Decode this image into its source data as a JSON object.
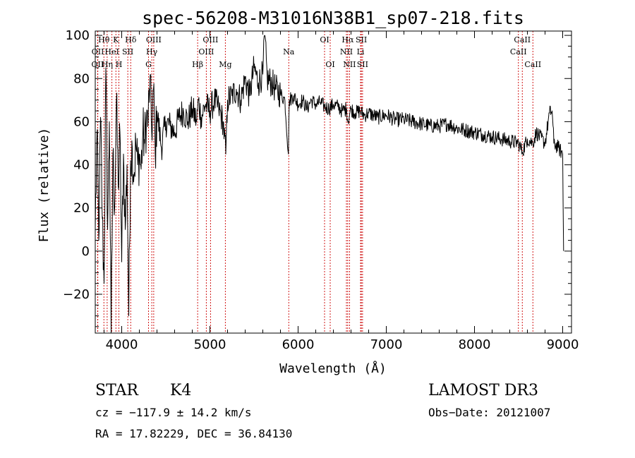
{
  "chart_data": {
    "type": "line",
    "title": "spec-56208-M31016N38B1_sp07-218.fits",
    "xlabel": "Wavelength (Å)",
    "ylabel": "Flux (relative)",
    "xlim": [
      3700,
      9100
    ],
    "ylim": [
      -38,
      102
    ],
    "xticks": [
      4000,
      5000,
      6000,
      7000,
      8000,
      9000
    ],
    "yticks": [
      -20,
      0,
      20,
      40,
      60,
      80,
      100
    ],
    "series": [
      {
        "name": "flux",
        "x": [
          3700,
          3720,
          3740,
          3760,
          3780,
          3800,
          3820,
          3840,
          3860,
          3880,
          3900,
          3920,
          3940,
          3960,
          3980,
          4000,
          4020,
          4040,
          4060,
          4080,
          4100,
          4120,
          4140,
          4160,
          4180,
          4200,
          4220,
          4240,
          4260,
          4280,
          4300,
          4320,
          4340,
          4360,
          4380,
          4400,
          4450,
          4500,
          4550,
          4600,
          4650,
          4700,
          4750,
          4800,
          4850,
          4870,
          4900,
          4950,
          5000,
          5050,
          5100,
          5150,
          5180,
          5200,
          5250,
          5300,
          5350,
          5400,
          5450,
          5500,
          5550,
          5600,
          5620,
          5650,
          5700,
          5750,
          5800,
          5850,
          5890,
          5900,
          5950,
          6000,
          6050,
          6100,
          6150,
          6200,
          6250,
          6300,
          6350,
          6400,
          6450,
          6500,
          6550,
          6563,
          6600,
          6650,
          6700,
          6750,
          6800,
          6900,
          7000,
          7100,
          7200,
          7300,
          7400,
          7500,
          7600,
          7700,
          7800,
          7900,
          8000,
          8100,
          8200,
          8300,
          8400,
          8500,
          8542,
          8600,
          8662,
          8700,
          8800,
          8850,
          8880,
          8900,
          8950,
          9000,
          9010
        ],
        "values": [
          10,
          55,
          5,
          62,
          15,
          -15,
          85,
          10,
          60,
          -38,
          45,
          20,
          70,
          30,
          55,
          -5,
          45,
          10,
          40,
          -30,
          42,
          48,
          35,
          50,
          40,
          45,
          38,
          55,
          50,
          62,
          60,
          80,
          55,
          75,
          45,
          65,
          48,
          60,
          58,
          55,
          62,
          65,
          60,
          66,
          60,
          70,
          62,
          68,
          65,
          70,
          66,
          60,
          45,
          70,
          72,
          75,
          70,
          80,
          72,
          85,
          78,
          82,
          100,
          80,
          78,
          75,
          73,
          70,
          45,
          70,
          72,
          68,
          70,
          66,
          70,
          68,
          69,
          67,
          66,
          68,
          67,
          65,
          66,
          60,
          66,
          64,
          65,
          63,
          64,
          62,
          63,
          61,
          61,
          60,
          59,
          58,
          58,
          59,
          57,
          56,
          55,
          54,
          53,
          52,
          51,
          50,
          46,
          52,
          50,
          55,
          50,
          64,
          65,
          50,
          48,
          45,
          0
        ]
      }
    ],
    "lines": [
      {
        "name": "OII",
        "wl": 3727,
        "row": 3
      },
      {
        "name": "OII",
        "wl": 3729,
        "row": 2
      },
      {
        "name": "Hθ",
        "wl": 3798,
        "row": 1
      },
      {
        "name": "Hη",
        "wl": 3835,
        "row": 3
      },
      {
        "name": "HeI",
        "wl": 3889,
        "row": 2
      },
      {
        "name": "K",
        "wl": 3934,
        "row": 1
      },
      {
        "name": "H",
        "wl": 3968,
        "row": 3
      },
      {
        "name": "SII",
        "wl": 4069,
        "row": 2
      },
      {
        "name": "Hδ",
        "wl": 4102,
        "row": 1
      },
      {
        "name": "G",
        "wl": 4304,
        "row": 3
      },
      {
        "name": "Hγ",
        "wl": 4341,
        "row": 2
      },
      {
        "name": "OIII",
        "wl": 4363,
        "row": 1
      },
      {
        "name": "Hβ",
        "wl": 4861,
        "row": 3
      },
      {
        "name": "OIII",
        "wl": 4959,
        "row": 2
      },
      {
        "name": "OIII",
        "wl": 5007,
        "row": 1
      },
      {
        "name": "Mg",
        "wl": 5175,
        "row": 3
      },
      {
        "name": "Na",
        "wl": 5894,
        "row": 2
      },
      {
        "name": "OI",
        "wl": 6300,
        "row": 1
      },
      {
        "name": "OI",
        "wl": 6364,
        "row": 3
      },
      {
        "name": "NII",
        "wl": 6548,
        "row": 2
      },
      {
        "name": "Hα",
        "wl": 6563,
        "row": 1
      },
      {
        "name": "NII",
        "wl": 6583,
        "row": 3
      },
      {
        "name": "Li",
        "wl": 6708,
        "row": 2
      },
      {
        "name": "SII",
        "wl": 6717,
        "row": 1
      },
      {
        "name": "SII",
        "wl": 6731,
        "row": 3
      },
      {
        "name": "CaII",
        "wl": 8498,
        "row": 2
      },
      {
        "name": "CaII",
        "wl": 8542,
        "row": 1
      },
      {
        "name": "CaII",
        "wl": 8662,
        "row": 3
      }
    ]
  },
  "info": {
    "class": "STAR",
    "subclass": "K4",
    "survey": "LAMOST DR3",
    "cz": "cz = −117.9 ± 14.2 km/s",
    "obs_date": "Obs−Date: 20121007",
    "coords": "RA =  17.82229, DEC =  36.84130"
  },
  "colors": {
    "line_marker": "#cc0000",
    "spectrum": "#000000",
    "axes": "#000000"
  }
}
